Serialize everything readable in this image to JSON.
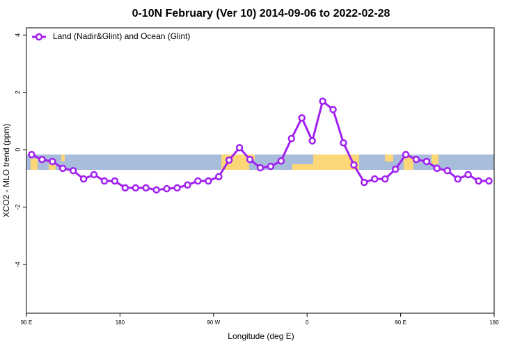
{
  "chart_data": {
    "type": "line",
    "title": "0-10N February (Ver 10)   2014-09-06 to 2022-02-28",
    "x_label": "Longitude (deg E)",
    "y_label": "XCO2 - MLO trend (ppm)",
    "legend_position": "top-left",
    "xlim": [
      90,
      540
    ],
    "xticks": [
      {
        "value": 90,
        "label": "90 E"
      },
      180,
      {
        "value": 270,
        "label": "90 W"
      },
      {
        "value": 360,
        "label": "0"
      },
      {
        "value": 450,
        "label": "90 E"
      },
      {
        "value": 540,
        "label": "180"
      }
    ],
    "ylim": [
      -5.7,
      4.25
    ],
    "yticks": [
      -4,
      -2,
      0,
      2,
      4
    ],
    "x": [
      95,
      105,
      115,
      125,
      135,
      145,
      155,
      165,
      175,
      185,
      195,
      205,
      215,
      225,
      235,
      245,
      255,
      265,
      275,
      285,
      295,
      305,
      315,
      325,
      335,
      345,
      355,
      365,
      375,
      385,
      395,
      405,
      415,
      425,
      435,
      445,
      455,
      465,
      475,
      485,
      495,
      505,
      515,
      525,
      535
    ],
    "series": [
      {
        "name": "Land (Nadir&Glint) and Ocean (Glint)",
        "color": "#a020f0",
        "values": [
          -0.17,
          -0.34,
          -0.41,
          -0.65,
          -0.73,
          -1.02,
          -0.87,
          -1.09,
          -1.09,
          -1.33,
          -1.33,
          -1.33,
          -1.4,
          -1.36,
          -1.33,
          -1.23,
          -1.09,
          -1.09,
          -0.94,
          -0.36,
          0.07,
          -0.34,
          -0.63,
          -0.58,
          -0.39,
          0.39,
          1.11,
          0.31,
          1.69,
          1.4,
          0.24,
          -0.53,
          -1.14,
          -1.02,
          -1.02,
          -0.68,
          -0.17,
          -0.34,
          -0.41,
          -0.65,
          -0.73,
          -1.02,
          -0.87,
          -1.09,
          -1.09
        ]
      }
    ]
  }
}
